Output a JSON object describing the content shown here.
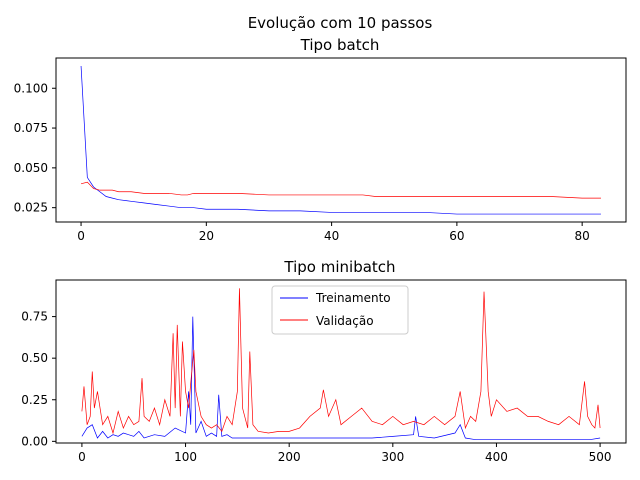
{
  "chart_data": [
    {
      "type": "line",
      "title": "Evolução com 10 passos",
      "subtitle": "Tipo batch",
      "xlabel": "",
      "ylabel": "",
      "xlim": [
        -4,
        87
      ],
      "ylim": [
        0.016,
        0.119
      ],
      "xticks": [
        "0",
        "20",
        "40",
        "60",
        "80"
      ],
      "yticks": [
        "0.025",
        "0.050",
        "0.075",
        "0.100"
      ],
      "grid": false,
      "series": [
        {
          "color": "#0000ff",
          "x": [
            0,
            1,
            2,
            3,
            4,
            5,
            6,
            8,
            10,
            12,
            14,
            16,
            18,
            20,
            25,
            30,
            35,
            40,
            45,
            50,
            55,
            60,
            65,
            70,
            75,
            80,
            83
          ],
          "values": [
            0.114,
            0.044,
            0.038,
            0.035,
            0.032,
            0.031,
            0.03,
            0.029,
            0.028,
            0.027,
            0.026,
            0.025,
            0.025,
            0.024,
            0.024,
            0.023,
            0.023,
            0.022,
            0.022,
            0.022,
            0.022,
            0.021,
            0.021,
            0.021,
            0.021,
            0.021,
            0.021
          ]
        },
        {
          "color": "#ff0000",
          "x": [
            0,
            1,
            2,
            3,
            4,
            5,
            6,
            8,
            10,
            12,
            14,
            16,
            17,
            18,
            20,
            25,
            30,
            35,
            40,
            45,
            47,
            50,
            55,
            60,
            65,
            70,
            75,
            80,
            83
          ],
          "values": [
            0.04,
            0.041,
            0.037,
            0.036,
            0.036,
            0.036,
            0.035,
            0.035,
            0.034,
            0.034,
            0.034,
            0.033,
            0.033,
            0.034,
            0.034,
            0.034,
            0.033,
            0.033,
            0.033,
            0.033,
            0.032,
            0.032,
            0.032,
            0.032,
            0.032,
            0.032,
            0.032,
            0.031,
            0.031
          ]
        }
      ]
    },
    {
      "type": "line",
      "title": "Tipo minibatch",
      "xlabel": "",
      "ylabel": "",
      "xlim": [
        -25,
        525
      ],
      "ylim": [
        -0.01,
        0.97
      ],
      "xticks": [
        "0",
        "100",
        "200",
        "300",
        "400",
        "500"
      ],
      "yticks": [
        "0.00",
        "0.25",
        "0.50",
        "0.75"
      ],
      "grid": false,
      "legend": {
        "position": "top-center"
      },
      "series": [
        {
          "name": "Treinamento",
          "color": "#0000ff",
          "x": [
            0,
            5,
            10,
            15,
            20,
            25,
            30,
            35,
            40,
            50,
            55,
            60,
            70,
            80,
            90,
            100,
            103,
            105,
            107,
            110,
            115,
            120,
            125,
            130,
            132,
            135,
            140,
            145,
            150,
            160,
            170,
            180,
            200,
            220,
            250,
            280,
            300,
            320,
            322,
            325,
            340,
            360,
            365,
            370,
            380,
            390,
            400,
            420,
            440,
            460,
            480,
            490,
            500
          ],
          "values": [
            0.03,
            0.08,
            0.1,
            0.02,
            0.06,
            0.02,
            0.04,
            0.03,
            0.05,
            0.03,
            0.06,
            0.02,
            0.04,
            0.03,
            0.08,
            0.05,
            0.3,
            0.1,
            0.75,
            0.05,
            0.12,
            0.03,
            0.05,
            0.03,
            0.28,
            0.03,
            0.04,
            0.02,
            0.02,
            0.02,
            0.02,
            0.02,
            0.02,
            0.02,
            0.02,
            0.02,
            0.03,
            0.04,
            0.15,
            0.03,
            0.02,
            0.05,
            0.1,
            0.02,
            0.01,
            0.01,
            0.01,
            0.01,
            0.01,
            0.01,
            0.01,
            0.01,
            0.02
          ]
        },
        {
          "name": "Validação",
          "color": "#ff0000",
          "x": [
            0,
            2,
            5,
            8,
            10,
            12,
            15,
            20,
            25,
            30,
            35,
            40,
            45,
            50,
            55,
            58,
            60,
            65,
            70,
            75,
            80,
            85,
            88,
            90,
            92,
            95,
            97,
            100,
            103,
            105,
            108,
            110,
            115,
            120,
            125,
            130,
            135,
            140,
            145,
            150,
            152,
            155,
            160,
            162,
            165,
            170,
            180,
            190,
            200,
            210,
            220,
            230,
            233,
            238,
            245,
            250,
            260,
            270,
            280,
            290,
            300,
            310,
            320,
            330,
            340,
            350,
            360,
            365,
            370,
            375,
            380,
            385,
            388,
            392,
            395,
            400,
            410,
            420,
            430,
            440,
            450,
            460,
            470,
            480,
            485,
            488,
            492,
            495,
            498,
            500
          ],
          "values": [
            0.18,
            0.33,
            0.1,
            0.15,
            0.42,
            0.2,
            0.3,
            0.1,
            0.15,
            0.05,
            0.18,
            0.08,
            0.15,
            0.1,
            0.12,
            0.38,
            0.15,
            0.12,
            0.2,
            0.1,
            0.25,
            0.15,
            0.65,
            0.2,
            0.7,
            0.15,
            0.6,
            0.3,
            0.2,
            0.35,
            0.55,
            0.3,
            0.15,
            0.1,
            0.08,
            0.1,
            0.06,
            0.15,
            0.1,
            0.3,
            0.92,
            0.2,
            0.08,
            0.54,
            0.1,
            0.06,
            0.05,
            0.06,
            0.06,
            0.08,
            0.15,
            0.2,
            0.31,
            0.15,
            0.25,
            0.1,
            0.15,
            0.2,
            0.12,
            0.1,
            0.15,
            0.1,
            0.12,
            0.1,
            0.15,
            0.1,
            0.15,
            0.3,
            0.08,
            0.15,
            0.12,
            0.3,
            0.9,
            0.3,
            0.15,
            0.25,
            0.18,
            0.2,
            0.15,
            0.15,
            0.12,
            0.1,
            0.15,
            0.1,
            0.36,
            0.15,
            0.1,
            0.08,
            0.22,
            0.08
          ]
        }
      ]
    }
  ]
}
